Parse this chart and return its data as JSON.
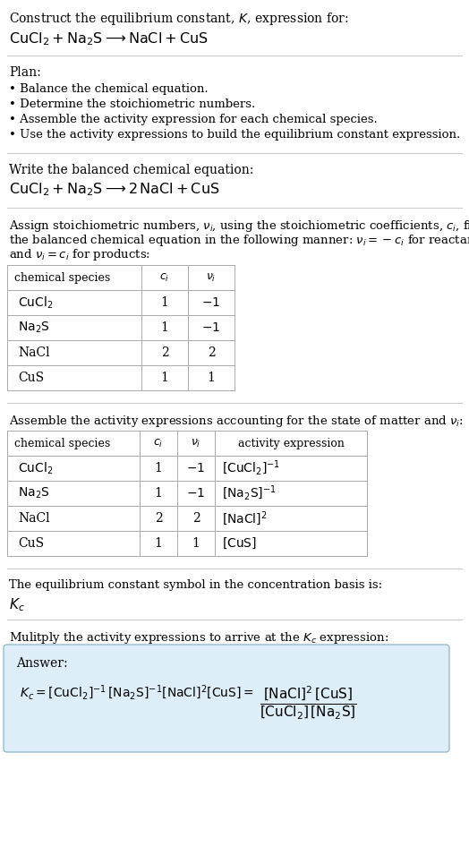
{
  "title_line1": "Construct the equilibrium constant, $K$, expression for:",
  "title_line2": "$\\mathrm{CuCl_2 + Na_2S \\longrightarrow NaCl + CuS}$",
  "plan_header": "Plan:",
  "plan_items": [
    "• Balance the chemical equation.",
    "• Determine the stoichiometric numbers.",
    "• Assemble the activity expression for each chemical species.",
    "• Use the activity expressions to build the equilibrium constant expression."
  ],
  "balanced_header": "Write the balanced chemical equation:",
  "balanced_eq": "$\\mathrm{CuCl_2 + Na_2S \\longrightarrow 2\\,NaCl + CuS}$",
  "stoich_intro_lines": [
    "Assign stoichiometric numbers, $\\nu_i$, using the stoichiometric coefficients, $c_i$, from",
    "the balanced chemical equation in the following manner: $\\nu_i = -c_i$ for reactants",
    "and $\\nu_i = c_i$ for products:"
  ],
  "table1_headers": [
    "chemical species",
    "$c_i$",
    "$\\nu_i$"
  ],
  "table1_rows": [
    [
      "$\\mathrm{CuCl_2}$",
      "1",
      "$-1$"
    ],
    [
      "$\\mathrm{Na_2S}$",
      "1",
      "$-1$"
    ],
    [
      "NaCl",
      "2",
      "2"
    ],
    [
      "CuS",
      "1",
      "1"
    ]
  ],
  "activity_intro": "Assemble the activity expressions accounting for the state of matter and $\\nu_i$:",
  "table2_headers": [
    "chemical species",
    "$c_i$",
    "$\\nu_i$",
    "activity expression"
  ],
  "table2_rows": [
    [
      "$\\mathrm{CuCl_2}$",
      "1",
      "$-1$",
      "$[\\mathrm{CuCl_2}]^{-1}$"
    ],
    [
      "$\\mathrm{Na_2S}$",
      "1",
      "$-1$",
      "$[\\mathrm{Na_2S}]^{-1}$"
    ],
    [
      "NaCl",
      "2",
      "2",
      "$[\\mathrm{NaCl}]^{2}$"
    ],
    [
      "CuS",
      "1",
      "1",
      "$[\\mathrm{CuS}]$"
    ]
  ],
  "kc_text": "The equilibrium constant symbol in the concentration basis is:",
  "kc_symbol": "$K_c$",
  "multiply_text": "Mulitply the activity expressions to arrive at the $K_c$ expression:",
  "answer_label": "Answer:",
  "answer_box_color": "#ddeef8",
  "answer_box_edge": "#99bbcc",
  "bg_color": "#ffffff",
  "text_color": "#000000",
  "table_line_color": "#aaaaaa",
  "separator_color": "#cccccc",
  "font_size": 10.0
}
